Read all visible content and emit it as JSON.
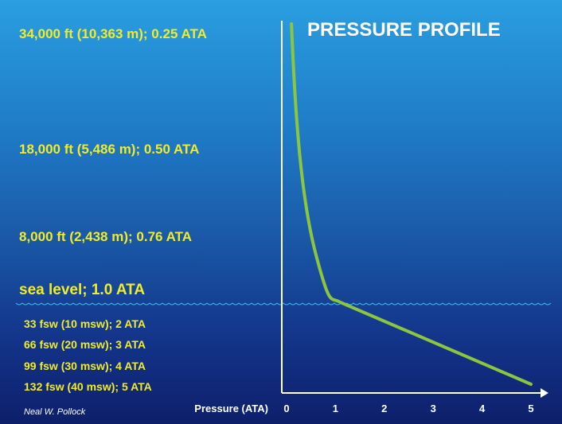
{
  "title": "PRESSURE PROFILE",
  "credit": "Neal W. Pollock",
  "altitude_labels": [
    "34,000 ft (10,363 m); 0.25 ATA",
    "18,000 ft (5,486 m); 0.50 ATA",
    "8,000 ft (2,438 m); 0.76 ATA"
  ],
  "sea_level_label": "sea level; 1.0 ATA",
  "depth_labels": [
    "33 fsw (10 msw); 2 ATA",
    "66 fsw (20 msw); 3 ATA",
    "99 fsw (30 msw); 4 ATA",
    "132 fsw (40 msw); 5 ATA"
  ],
  "colors": {
    "label": "#f0ec2c",
    "curve": "#8cc63e",
    "axis": "#ffffff",
    "waves": "#3fb6ec"
  },
  "chart_data": {
    "type": "line",
    "xlabel": "Pressure (ATA)",
    "ylabel": "",
    "xlim": [
      0,
      5
    ],
    "x_ticks": [
      0,
      1,
      2,
      3,
      4,
      5
    ],
    "series": [
      {
        "points": [
          {
            "x": 0.25,
            "y": "34,000 ft"
          },
          {
            "x": 0.5,
            "y": "18,000 ft"
          },
          {
            "x": 0.76,
            "y": "8,000 ft"
          },
          {
            "x": 1.0,
            "y": "sea level"
          },
          {
            "x": 2,
            "y": "33 fsw"
          },
          {
            "x": 3,
            "y": "66 fsw"
          },
          {
            "x": 4,
            "y": "99 fsw"
          },
          {
            "x": 5,
            "y": "132 fsw"
          }
        ]
      }
    ]
  }
}
